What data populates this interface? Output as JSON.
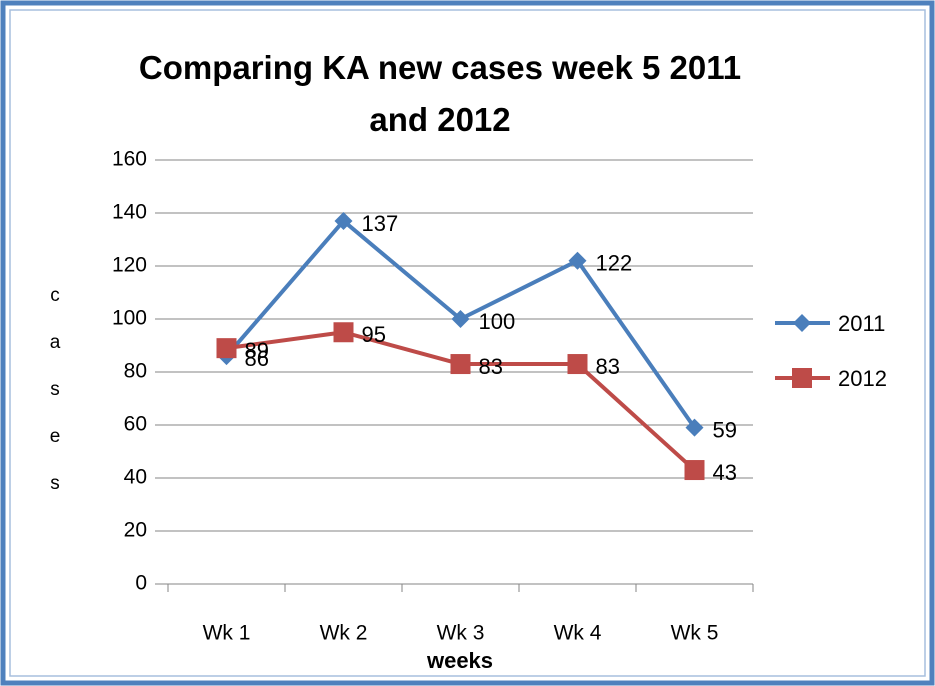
{
  "chart_data": {
    "type": "line",
    "title": "Comparing KA new cases week 5 2011 and 2012",
    "x_label": "weeks",
    "y_label": "cases",
    "categories": [
      "Wk 1",
      "Wk 2",
      "Wk 3",
      "Wk 4",
      "Wk 5"
    ],
    "series": [
      {
        "name": "2011",
        "color": "#4a7ebb",
        "marker": "diamond",
        "values": [
          86,
          137,
          100,
          122,
          59
        ]
      },
      {
        "name": "2012",
        "color": "#be4b48",
        "marker": "square",
        "values": [
          89,
          95,
          83,
          83,
          43
        ]
      }
    ],
    "ylim": [
      0,
      160
    ],
    "yticks": [
      0,
      20,
      40,
      60,
      80,
      100,
      120,
      140,
      160
    ],
    "grid": true,
    "legend": "right",
    "data_labels": true
  }
}
